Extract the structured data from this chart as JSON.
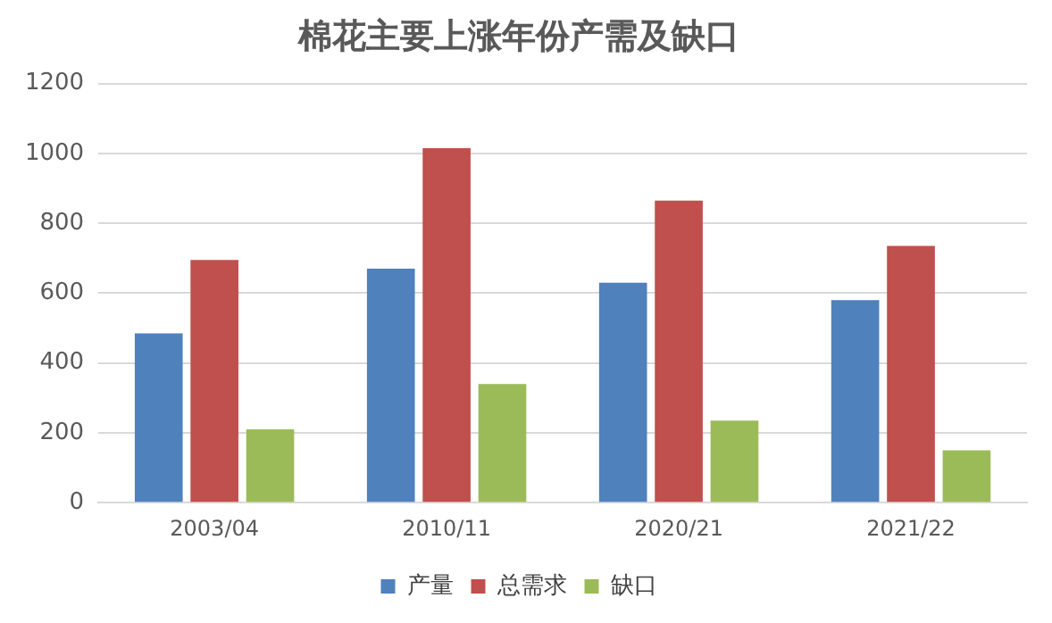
{
  "chart_data": {
    "type": "bar",
    "title": "棉花主要上涨年份产需及缺口",
    "categories": [
      "2003/04",
      "2010/11",
      "2020/21",
      "2021/22"
    ],
    "series": [
      {
        "name": "产量",
        "color": "#4f81bd",
        "values": [
          485,
          670,
          630,
          580
        ]
      },
      {
        "name": "总需求",
        "color": "#c0504d",
        "values": [
          695,
          1015,
          865,
          735
        ]
      },
      {
        "name": "缺口",
        "color": "#9bbb59",
        "values": [
          210,
          340,
          235,
          150
        ]
      }
    ],
    "ylim": [
      0,
      1200
    ],
    "yticks": [
      0,
      200,
      400,
      600,
      800,
      1000,
      1200
    ],
    "grid": "y",
    "legend": "bottom"
  }
}
